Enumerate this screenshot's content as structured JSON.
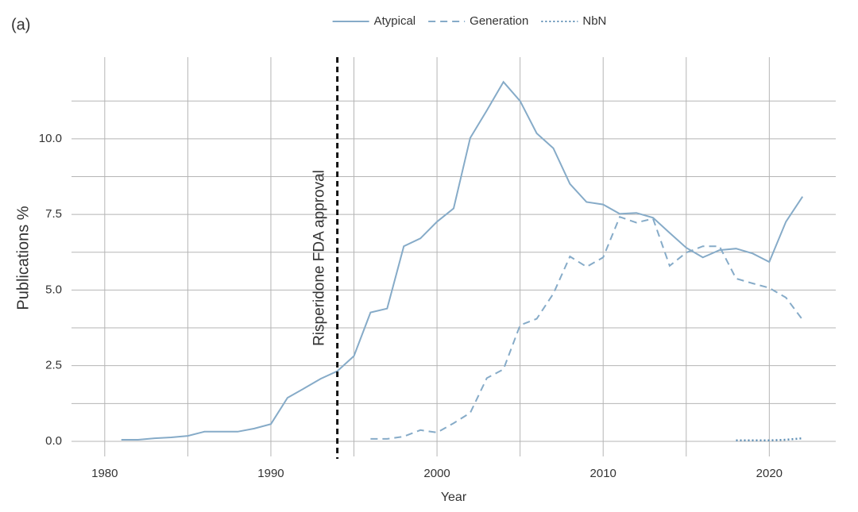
{
  "chart_data": {
    "type": "line",
    "panel_label": "(a)",
    "x_label": "Year",
    "y_label": "Publications %",
    "x": [
      1981,
      1982,
      1983,
      1984,
      1985,
      1986,
      1987,
      1988,
      1989,
      1990,
      1991,
      1992,
      1993,
      1994,
      1995,
      1996,
      1997,
      1998,
      1999,
      2000,
      2001,
      2002,
      2003,
      2004,
      2005,
      2006,
      2007,
      2008,
      2009,
      2010,
      2011,
      2012,
      2013,
      2014,
      2015,
      2016,
      2017,
      2018,
      2019,
      2020,
      2021,
      2022
    ],
    "series": [
      {
        "name": "Atypical",
        "color": "#86abc8",
        "dash": "solid",
        "values": [
          0.05,
          0.05,
          0.1,
          0.13,
          0.18,
          0.32,
          0.32,
          0.32,
          0.42,
          0.57,
          1.44,
          1.75,
          2.07,
          2.32,
          2.82,
          4.26,
          4.39,
          6.45,
          6.71,
          7.26,
          7.7,
          10.03,
          10.94,
          11.88,
          11.25,
          10.18,
          9.69,
          8.51,
          7.91,
          7.83,
          7.52,
          7.55,
          7.39,
          6.89,
          6.4,
          6.08,
          6.32,
          6.37,
          6.21,
          5.93,
          7.26,
          8.09
        ]
      },
      {
        "name": "Generation",
        "color": "#86abc8",
        "dash": "dashed",
        "values": [
          null,
          null,
          null,
          null,
          null,
          null,
          null,
          null,
          null,
          null,
          null,
          null,
          null,
          null,
          null,
          0.08,
          0.08,
          0.16,
          0.37,
          0.29,
          0.6,
          0.94,
          2.09,
          2.38,
          3.84,
          4.05,
          4.88,
          6.11,
          5.77,
          6.08,
          7.42,
          7.23,
          7.36,
          5.8,
          6.24,
          6.45,
          6.45,
          5.38,
          5.22,
          5.07,
          4.75,
          4.02
        ]
      },
      {
        "name": "NbN",
        "color": "#5f8fb5",
        "dash": "dotted",
        "values": [
          null,
          null,
          null,
          null,
          null,
          null,
          null,
          null,
          null,
          null,
          null,
          null,
          null,
          null,
          null,
          null,
          null,
          null,
          null,
          null,
          null,
          null,
          null,
          null,
          null,
          null,
          null,
          null,
          null,
          null,
          null,
          null,
          null,
          null,
          null,
          null,
          null,
          0.03,
          0.03,
          0.03,
          0.05,
          0.1
        ]
      }
    ],
    "xlim": [
      1978,
      2024
    ],
    "ylim": [
      -0.5,
      12.7
    ],
    "xticks": [
      1980,
      1990,
      2000,
      2010,
      2020
    ],
    "x_minor_ticks": [
      1985,
      1995,
      2005,
      2015
    ],
    "yticks": [
      {
        "value": 0,
        "label": "0.0"
      },
      2.5,
      {
        "value": 5,
        "label": "5.0"
      },
      7.5,
      {
        "value": 10,
        "label": "10.0"
      }
    ],
    "y_minor_ticks": [
      1.25,
      3.75,
      6.25,
      8.75,
      11.25
    ],
    "grid": true,
    "legend": "top",
    "vline": {
      "x": 1994,
      "label": "Risperidone FDA approval",
      "color": "#111111"
    }
  }
}
